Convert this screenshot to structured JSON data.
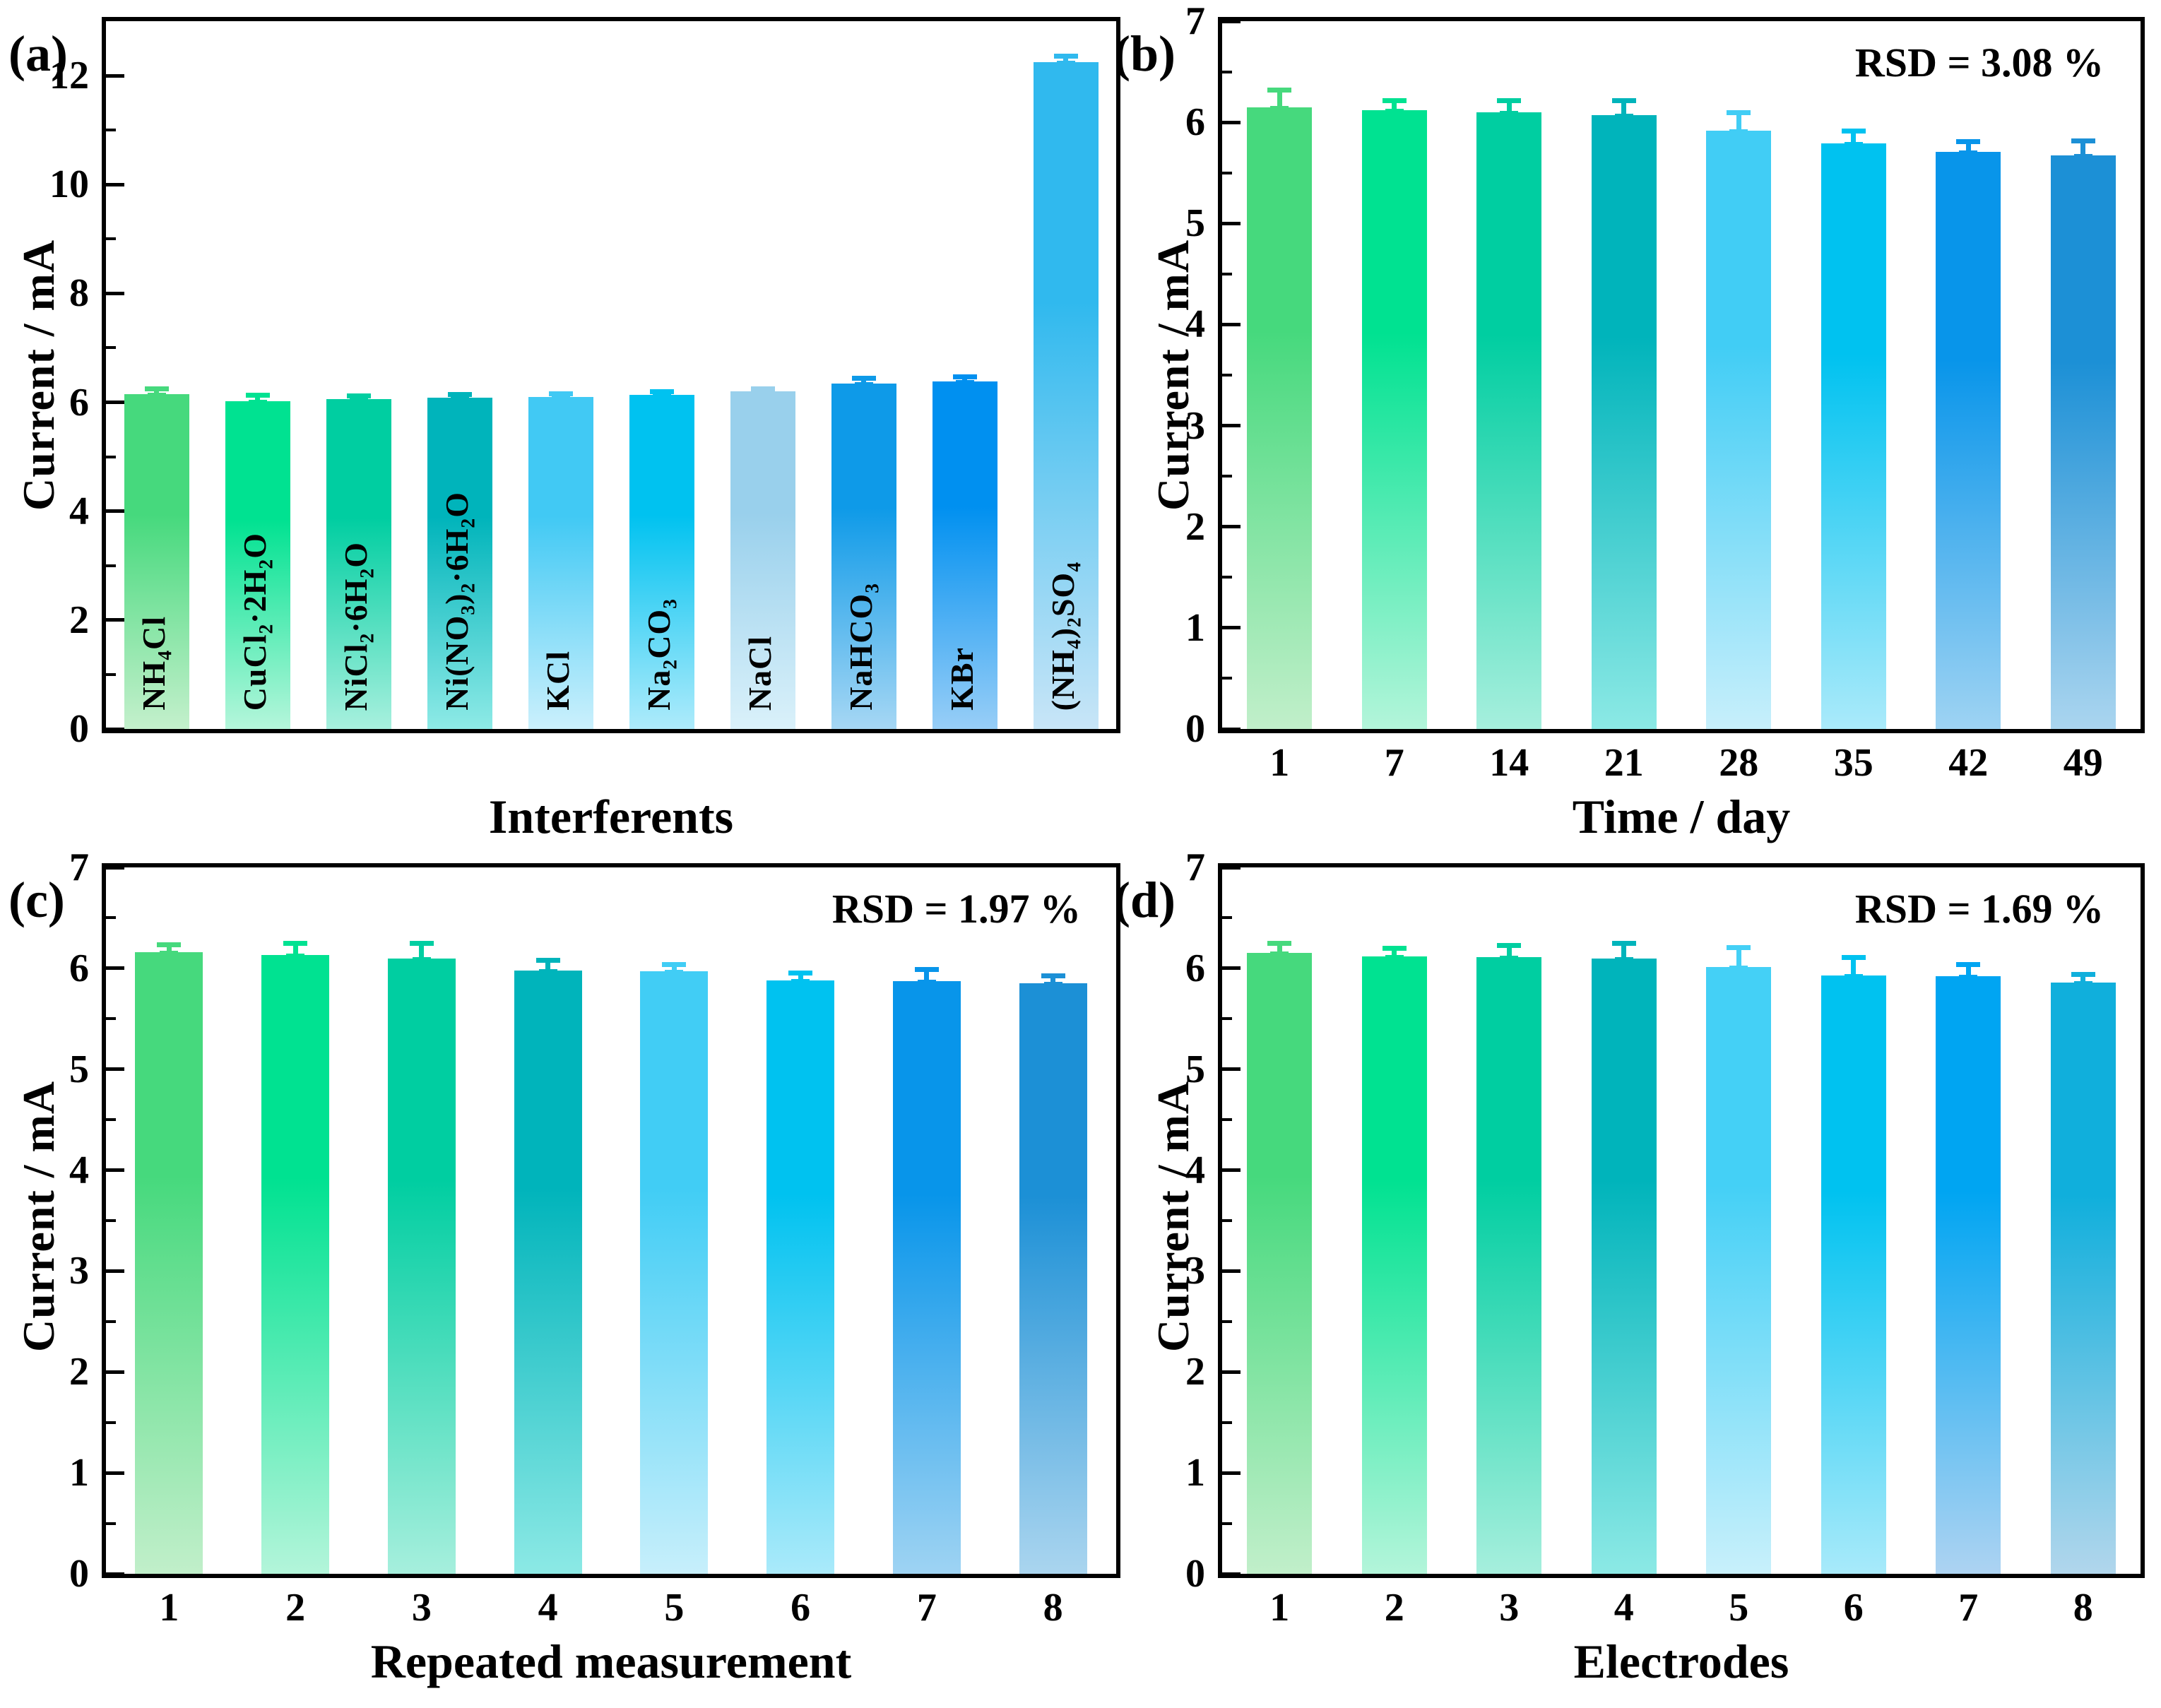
{
  "figure_type": "four-panel bar figure",
  "chart_data": [
    {
      "type": "bar",
      "letter": "(a)",
      "xlabel": "Interferents",
      "ylabel": "Current / mA",
      "annotation": "",
      "ylim": [
        0,
        13
      ],
      "yticks": [
        0,
        2,
        4,
        6,
        8,
        10,
        12
      ],
      "yticks_minor": [
        1,
        3,
        5,
        7,
        9,
        11
      ],
      "categories": [
        "NH₄Cl",
        "CuCl₂·2H₂O",
        "NiCl₂·6H₂O",
        "Ni(NO₃)₂·6H₂O",
        "KCl",
        "Na₂CO₃",
        "NaCl",
        "NaHCO₃",
        "KBr",
        "(NH₄)₂SO₄"
      ],
      "values": [
        6.15,
        6.02,
        6.06,
        6.08,
        6.1,
        6.14,
        6.2,
        6.35,
        6.38,
        12.25
      ],
      "errors": [
        0.1,
        0.12,
        0.07,
        0.07,
        0.06,
        0.06,
        0.05,
        0.1,
        0.1,
        0.12
      ],
      "category_label_position": "inside-vertical",
      "grid": "off",
      "legend": "none",
      "bar_colors": [
        {
          "top": "#46D97D",
          "bottom": "#C4F0CC"
        },
        {
          "top": "#00E291",
          "bottom": "#B5F6DB"
        },
        {
          "top": "#00CEA1",
          "bottom": "#A8F0DE"
        },
        {
          "top": "#00B4BB",
          "bottom": "#8EEAE6"
        },
        {
          "top": "#41C9F4",
          "bottom": "#CBF0FC"
        },
        {
          "top": "#00C2F0",
          "bottom": "#AEEBFB"
        },
        {
          "top": "#99D0EC",
          "bottom": "#DAF1FA"
        },
        {
          "top": "#0E9AE8",
          "bottom": "#A6D7F4"
        },
        {
          "top": "#0090F0",
          "bottom": "#98CEF7"
        },
        {
          "top": "#30B9EE",
          "bottom": "#C8E5F7"
        }
      ]
    },
    {
      "type": "bar",
      "letter": "(b)",
      "xlabel": "Time / day",
      "ylabel": "Current / mA",
      "annotation": "RSD = 3.08 %",
      "ylim": [
        0,
        7
      ],
      "yticks": [
        0,
        1,
        2,
        3,
        4,
        5,
        6,
        7
      ],
      "yticks_minor": [
        0.5,
        1.5,
        2.5,
        3.5,
        4.5,
        5.5,
        6.5
      ],
      "categories": [
        "1",
        "7",
        "14",
        "21",
        "28",
        "35",
        "42",
        "49"
      ],
      "values": [
        6.15,
        6.12,
        6.1,
        6.07,
        5.92,
        5.79,
        5.71,
        5.67
      ],
      "errors": [
        0.17,
        0.1,
        0.12,
        0.15,
        0.18,
        0.13,
        0.1,
        0.15
      ],
      "category_label_position": "below",
      "grid": "off",
      "legend": "none",
      "bar_colors": [
        {
          "top": "#46D97D",
          "bottom": "#C1EFCA"
        },
        {
          "top": "#00E291",
          "bottom": "#B3F5DA"
        },
        {
          "top": "#00CEA1",
          "bottom": "#A6EFDD"
        },
        {
          "top": "#00B4BB",
          "bottom": "#8CE9E5"
        },
        {
          "top": "#41CDF5",
          "bottom": "#C7EFFB"
        },
        {
          "top": "#00C2F0",
          "bottom": "#AAEAFA"
        },
        {
          "top": "#0895EA",
          "bottom": "#9ED3F3"
        },
        {
          "top": "#1C90D6",
          "bottom": "#AAD5EF"
        }
      ]
    },
    {
      "type": "bar",
      "letter": "(c)",
      "xlabel": "Repeated measurement",
      "ylabel": "Current / mA",
      "annotation": "RSD = 1.97 %",
      "ylim": [
        0,
        7
      ],
      "yticks": [
        0,
        1,
        2,
        3,
        4,
        5,
        6,
        7
      ],
      "yticks_minor": [
        0.5,
        1.5,
        2.5,
        3.5,
        4.5,
        5.5,
        6.5
      ],
      "categories": [
        "1",
        "2",
        "3",
        "4",
        "5",
        "6",
        "7",
        "8"
      ],
      "values": [
        6.16,
        6.13,
        6.1,
        5.98,
        5.97,
        5.88,
        5.87,
        5.85
      ],
      "errors": [
        0.08,
        0.12,
        0.15,
        0.1,
        0.07,
        0.08,
        0.12,
        0.08
      ],
      "category_label_position": "below",
      "grid": "off",
      "legend": "none",
      "bar_colors": [
        {
          "top": "#46D97D",
          "bottom": "#C1EFCA"
        },
        {
          "top": "#00E291",
          "bottom": "#B3F5DA"
        },
        {
          "top": "#00CEA1",
          "bottom": "#A6EFDD"
        },
        {
          "top": "#00B4BB",
          "bottom": "#8CE9E5"
        },
        {
          "top": "#41CDF5",
          "bottom": "#C7EFFB"
        },
        {
          "top": "#00C2F0",
          "bottom": "#AAEAFA"
        },
        {
          "top": "#0895EA",
          "bottom": "#9ED3F3"
        },
        {
          "top": "#1C90D6",
          "bottom": "#AAD5EF"
        }
      ]
    },
    {
      "type": "bar",
      "letter": "(d)",
      "xlabel": "Electrodes",
      "ylabel": "Current / mA",
      "annotation": "RSD = 1.69 %",
      "ylim": [
        0,
        7
      ],
      "yticks": [
        0,
        1,
        2,
        3,
        4,
        5,
        6,
        7
      ],
      "yticks_minor": [
        0.5,
        1.5,
        2.5,
        3.5,
        4.5,
        5.5,
        6.5
      ],
      "categories": [
        "1",
        "2",
        "3",
        "4",
        "5",
        "6",
        "7",
        "8"
      ],
      "values": [
        6.15,
        6.12,
        6.11,
        6.1,
        6.01,
        5.93,
        5.92,
        5.86
      ],
      "errors": [
        0.1,
        0.08,
        0.12,
        0.15,
        0.2,
        0.18,
        0.12,
        0.08
      ],
      "category_label_position": "below",
      "grid": "off",
      "legend": "none",
      "bar_colors": [
        {
          "top": "#46D97D",
          "bottom": "#C1EFCA"
        },
        {
          "top": "#00E291",
          "bottom": "#B3F5DA"
        },
        {
          "top": "#00CEA1",
          "bottom": "#A6EFDD"
        },
        {
          "top": "#00B4BB",
          "bottom": "#8CE9E5"
        },
        {
          "top": "#44D0F6",
          "bottom": "#C8F0FB"
        },
        {
          "top": "#00C2F0",
          "bottom": "#A8EAFA"
        },
        {
          "top": "#00A5F2",
          "bottom": "#ADD3F2"
        },
        {
          "top": "#10AFDC",
          "bottom": "#B1D6EC"
        }
      ]
    }
  ]
}
